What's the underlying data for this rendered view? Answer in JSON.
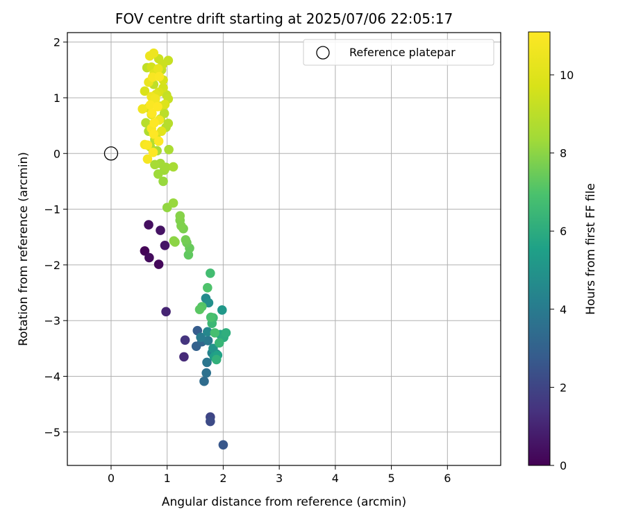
{
  "chart_data": {
    "type": "scatter",
    "title": "FOV centre drift starting at 2025/07/06 22:05:17",
    "xlabel": "Angular distance from reference (arcmin)",
    "ylabel": "Rotation from reference (arcmin)",
    "xlim": [
      -0.78,
      6.95
    ],
    "ylim": [
      -5.6,
      2.17
    ],
    "xticks": [
      0,
      1,
      2,
      3,
      4,
      5,
      6
    ],
    "yticks": [
      -5,
      -4,
      -3,
      -2,
      -1,
      0,
      1,
      2
    ],
    "grid": true,
    "legend": {
      "position": "upper-right",
      "entries": [
        "Reference platepar"
      ]
    },
    "reference_point": {
      "x": 0,
      "y": 0,
      "label": "Reference platepar"
    },
    "colorbar": {
      "label": "Hours from first FF file",
      "colormap": "viridis",
      "range": [
        0,
        11.1
      ],
      "ticks": [
        0,
        2,
        4,
        6,
        8,
        10
      ]
    },
    "points": [
      {
        "x": 0.6,
        "y": -1.75,
        "c": 0.1
      },
      {
        "x": 0.68,
        "y": -1.87,
        "c": 0.3
      },
      {
        "x": 0.85,
        "y": -1.99,
        "c": 0.2
      },
      {
        "x": 0.67,
        "y": -1.28,
        "c": 0.4
      },
      {
        "x": 0.88,
        "y": -1.38,
        "c": 0.5
      },
      {
        "x": 0.96,
        "y": -1.65,
        "c": 0.6
      },
      {
        "x": 0.98,
        "y": -2.84,
        "c": 1.0
      },
      {
        "x": 1.3,
        "y": -3.65,
        "c": 1.2
      },
      {
        "x": 1.32,
        "y": -3.35,
        "c": 1.5
      },
      {
        "x": 1.77,
        "y": -4.73,
        "c": 2.0
      },
      {
        "x": 1.77,
        "y": -4.81,
        "c": 2.2
      },
      {
        "x": 2.0,
        "y": -5.23,
        "c": 2.6
      },
      {
        "x": 1.54,
        "y": -3.18,
        "c": 2.8
      },
      {
        "x": 1.52,
        "y": -3.46,
        "c": 3.0
      },
      {
        "x": 1.62,
        "y": -3.38,
        "c": 3.2
      },
      {
        "x": 1.66,
        "y": -4.09,
        "c": 3.4
      },
      {
        "x": 1.7,
        "y": -3.94,
        "c": 3.6
      },
      {
        "x": 1.71,
        "y": -3.75,
        "c": 3.8
      },
      {
        "x": 1.73,
        "y": -3.36,
        "c": 3.9
      },
      {
        "x": 1.6,
        "y": -3.3,
        "c": 4.0
      },
      {
        "x": 1.88,
        "y": -3.6,
        "c": 4.1
      },
      {
        "x": 1.8,
        "y": -3.58,
        "c": 4.3
      },
      {
        "x": 1.72,
        "y": -3.2,
        "c": 4.5
      },
      {
        "x": 1.69,
        "y": -2.6,
        "c": 4.6
      },
      {
        "x": 1.74,
        "y": -2.68,
        "c": 4.8
      },
      {
        "x": 1.82,
        "y": -3.5,
        "c": 5.0
      },
      {
        "x": 1.98,
        "y": -2.81,
        "c": 5.2
      },
      {
        "x": 1.84,
        "y": -3.65,
        "c": 5.4
      },
      {
        "x": 1.9,
        "y": -3.62,
        "c": 5.6
      },
      {
        "x": 1.95,
        "y": -3.25,
        "c": 5.8
      },
      {
        "x": 2.01,
        "y": -3.3,
        "c": 6.0
      },
      {
        "x": 2.05,
        "y": -3.22,
        "c": 6.1
      },
      {
        "x": 1.88,
        "y": -3.7,
        "c": 6.2
      },
      {
        "x": 1.93,
        "y": -3.4,
        "c": 6.4
      },
      {
        "x": 1.8,
        "y": -3.05,
        "c": 6.5
      },
      {
        "x": 1.82,
        "y": -2.95,
        "c": 6.6
      },
      {
        "x": 1.77,
        "y": -2.15,
        "c": 6.7
      },
      {
        "x": 1.85,
        "y": -3.22,
        "c": 6.8
      },
      {
        "x": 1.78,
        "y": -2.94,
        "c": 6.9
      },
      {
        "x": 1.72,
        "y": -2.41,
        "c": 7.0
      },
      {
        "x": 1.62,
        "y": -2.75,
        "c": 7.1
      },
      {
        "x": 1.58,
        "y": -2.8,
        "c": 7.2
      },
      {
        "x": 1.38,
        "y": -1.82,
        "c": 7.3
      },
      {
        "x": 1.4,
        "y": -1.7,
        "c": 7.4
      },
      {
        "x": 1.35,
        "y": -1.6,
        "c": 7.5
      },
      {
        "x": 1.33,
        "y": -1.55,
        "c": 7.6
      },
      {
        "x": 1.29,
        "y": -1.35,
        "c": 7.7
      },
      {
        "x": 1.25,
        "y": -1.3,
        "c": 7.8
      },
      {
        "x": 1.23,
        "y": -1.2,
        "c": 7.8
      },
      {
        "x": 1.23,
        "y": -1.12,
        "c": 7.9
      },
      {
        "x": 1.12,
        "y": -1.57,
        "c": 8.0
      },
      {
        "x": 1.14,
        "y": -1.59,
        "c": 8.0
      },
      {
        "x": 1.0,
        "y": -0.97,
        "c": 8.1
      },
      {
        "x": 1.11,
        "y": -0.89,
        "c": 8.2
      },
      {
        "x": 0.93,
        "y": -0.5,
        "c": 8.2
      },
      {
        "x": 0.84,
        "y": -0.37,
        "c": 8.3
      },
      {
        "x": 0.95,
        "y": -0.3,
        "c": 8.3
      },
      {
        "x": 0.98,
        "y": -0.25,
        "c": 8.4
      },
      {
        "x": 0.88,
        "y": -0.18,
        "c": 8.4
      },
      {
        "x": 0.78,
        "y": -0.2,
        "c": 8.5
      },
      {
        "x": 1.11,
        "y": -0.24,
        "c": 8.5
      },
      {
        "x": 1.03,
        "y": 0.07,
        "c": 8.6
      },
      {
        "x": 0.82,
        "y": 0.05,
        "c": 8.6
      },
      {
        "x": 0.7,
        "y": 0.12,
        "c": 8.7
      },
      {
        "x": 0.67,
        "y": 0.4,
        "c": 8.7
      },
      {
        "x": 0.78,
        "y": 0.25,
        "c": 8.8
      },
      {
        "x": 0.98,
        "y": 0.47,
        "c": 8.8
      },
      {
        "x": 1.02,
        "y": 0.54,
        "c": 8.9
      },
      {
        "x": 0.62,
        "y": 0.55,
        "c": 8.9
      },
      {
        "x": 0.88,
        "y": 0.62,
        "c": 9.0
      },
      {
        "x": 0.95,
        "y": 0.72,
        "c": 9.0
      },
      {
        "x": 0.64,
        "y": 1.54,
        "c": 9.1
      },
      {
        "x": 0.76,
        "y": 1.24,
        "c": 9.1
      },
      {
        "x": 0.9,
        "y": 1.5,
        "c": 9.2
      },
      {
        "x": 0.99,
        "y": 1.05,
        "c": 9.2
      },
      {
        "x": 1.02,
        "y": 0.98,
        "c": 9.3
      },
      {
        "x": 1.02,
        "y": 1.67,
        "c": 9.3
      },
      {
        "x": 0.85,
        "y": 1.7,
        "c": 9.4
      },
      {
        "x": 0.92,
        "y": 1.6,
        "c": 9.4
      },
      {
        "x": 0.88,
        "y": 0.85,
        "c": 9.5
      },
      {
        "x": 0.8,
        "y": 0.3,
        "c": 9.5
      },
      {
        "x": 0.93,
        "y": 1.18,
        "c": 9.6
      },
      {
        "x": 0.72,
        "y": 1.55,
        "c": 9.6
      },
      {
        "x": 0.66,
        "y": 0.82,
        "c": 9.7
      },
      {
        "x": 0.93,
        "y": 1.32,
        "c": 9.7
      },
      {
        "x": 0.6,
        "y": 1.12,
        "c": 9.8
      },
      {
        "x": 0.85,
        "y": 1.1,
        "c": 9.8
      },
      {
        "x": 0.72,
        "y": 0.7,
        "c": 9.9
      },
      {
        "x": 0.96,
        "y": 0.88,
        "c": 9.9
      },
      {
        "x": 0.77,
        "y": 1.44,
        "c": 10.0
      },
      {
        "x": 0.8,
        "y": 1.06,
        "c": 10.1
      },
      {
        "x": 0.9,
        "y": 0.4,
        "c": 10.1
      },
      {
        "x": 0.74,
        "y": 0.92,
        "c": 10.2
      },
      {
        "x": 0.84,
        "y": 1.52,
        "c": 10.3
      },
      {
        "x": 0.67,
        "y": 1.28,
        "c": 10.4
      },
      {
        "x": 0.76,
        "y": 1.8,
        "c": 10.5
      },
      {
        "x": 0.69,
        "y": 1.75,
        "c": 10.5
      },
      {
        "x": 0.72,
        "y": 1.02,
        "c": 10.6
      },
      {
        "x": 0.56,
        "y": 0.8,
        "c": 10.6
      },
      {
        "x": 0.86,
        "y": 0.6,
        "c": 10.7
      },
      {
        "x": 0.79,
        "y": 0.98,
        "c": 10.7
      },
      {
        "x": 0.6,
        "y": 0.16,
        "c": 10.8
      },
      {
        "x": 0.65,
        "y": -0.1,
        "c": 10.8
      },
      {
        "x": 0.72,
        "y": 0.45,
        "c": 10.9
      },
      {
        "x": 0.74,
        "y": 1.37,
        "c": 10.9
      },
      {
        "x": 0.86,
        "y": 1.38,
        "c": 11.0
      },
      {
        "x": 0.65,
        "y": 0.15,
        "c": 11.0
      },
      {
        "x": 0.7,
        "y": 0.87,
        "c": 11.0
      },
      {
        "x": 0.77,
        "y": 0.55,
        "c": 11.1
      },
      {
        "x": 0.76,
        "y": 0.35,
        "c": 11.1
      },
      {
        "x": 0.85,
        "y": 0.22,
        "c": 11.1
      },
      {
        "x": 0.75,
        "y": 0.02,
        "c": 11.1
      },
      {
        "x": 0.73,
        "y": 0.72,
        "c": 11.1
      },
      {
        "x": 0.83,
        "y": 0.84,
        "c": 11.1
      }
    ]
  }
}
